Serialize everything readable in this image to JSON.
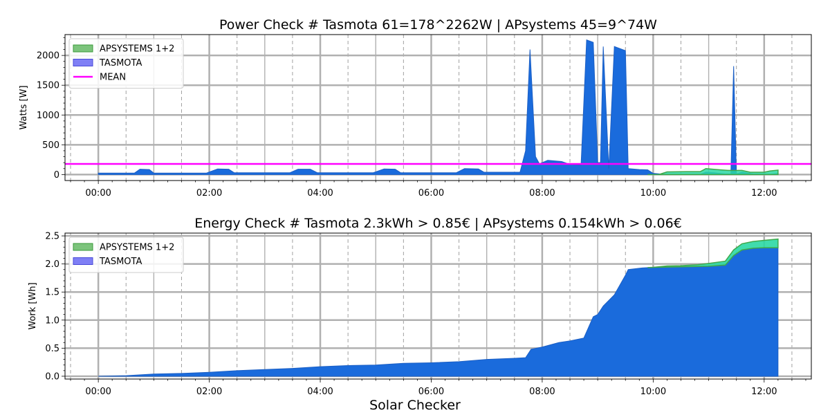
{
  "suptitle": "Solar Checker",
  "colors": {
    "tasmota_fill": "#1a6bdc",
    "apsystems_fill": "#2bd8a4",
    "apsystems_edge": "#3fa84a",
    "mean": "#ff00ff",
    "grid_major": "#b0b0b0",
    "grid_minor": "#a0a0a0"
  },
  "chart_data": [
    {
      "type": "area",
      "title": "Power Check # Tasmota 61=178^2262W | APsystems 45=9^74W",
      "xlabel": "",
      "ylabel": "Watts [W]",
      "xlim": [
        -0.6,
        12.85
      ],
      "ylim": [
        -100,
        2350
      ],
      "x_ticks": [
        0,
        2,
        4,
        6,
        8,
        10,
        12
      ],
      "x_tick_labels": [
        "00:00",
        "02:00",
        "04:00",
        "06:00",
        "08:00",
        "10:00",
        "12:00"
      ],
      "y_ticks": [
        0,
        500,
        1000,
        1500,
        2000
      ],
      "y_tick_labels": [
        "0",
        "500",
        "1000",
        "1500",
        "2000"
      ],
      "legend": [
        "APSYSTEMS 1+2",
        "TASMOTA",
        "MEAN"
      ],
      "legend_position": "upper left",
      "mean_value": 178,
      "series": [
        {
          "name": "TASMOTA",
          "x": [
            0.0,
            0.65,
            0.75,
            0.92,
            1.0,
            1.95,
            2.15,
            2.35,
            2.45,
            3.45,
            3.6,
            3.82,
            3.95,
            4.95,
            5.15,
            5.35,
            5.45,
            6.45,
            6.6,
            6.85,
            6.95,
            7.6,
            7.7,
            7.78,
            7.88,
            7.95,
            8.1,
            8.35,
            8.5,
            8.7,
            8.8,
            8.92,
            9.0,
            9.05,
            9.1,
            9.2,
            9.3,
            9.5,
            9.55,
            9.75,
            9.9,
            10.0,
            10.2,
            10.5,
            10.85,
            10.95,
            11.1,
            11.3,
            11.4,
            11.45,
            11.5,
            11.6,
            11.8,
            12.1,
            12.25
          ],
          "y": [
            25,
            25,
            90,
            85,
            25,
            25,
            95,
            90,
            30,
            30,
            90,
            90,
            30,
            30,
            95,
            90,
            30,
            30,
            100,
            95,
            40,
            40,
            400,
            2100,
            300,
            180,
            240,
            220,
            170,
            160,
            2260,
            2220,
            200,
            200,
            2150,
            100,
            2150,
            2080,
            100,
            85,
            80,
            20,
            5,
            5,
            5,
            40,
            30,
            10,
            10,
            1820,
            10,
            40,
            10,
            5,
            20
          ]
        },
        {
          "name": "APSYSTEMS 1+2",
          "x": [
            9.9,
            10.1,
            10.25,
            10.6,
            10.85,
            10.95,
            11.2,
            11.35,
            11.6,
            11.75,
            12.0,
            12.1,
            12.25
          ],
          "y": [
            0,
            0,
            45,
            50,
            50,
            100,
            80,
            70,
            70,
            40,
            40,
            60,
            75
          ]
        }
      ]
    },
    {
      "type": "area",
      "title": "Energy Check # Tasmota 2.3kWh > 0.85€ | APsystems 0.154kWh > 0.06€",
      "xlabel": "",
      "ylabel": "Work [Wh]",
      "xlim": [
        -0.6,
        12.85
      ],
      "ylim": [
        -0.05,
        2.55
      ],
      "x_ticks": [
        0,
        2,
        4,
        6,
        8,
        10,
        12
      ],
      "x_tick_labels": [
        "00:00",
        "02:00",
        "04:00",
        "06:00",
        "08:00",
        "10:00",
        "12:00"
      ],
      "y_ticks": [
        0.0,
        0.5,
        1.0,
        1.5,
        2.0,
        2.5
      ],
      "y_tick_labels": [
        "0.0",
        "0.5",
        "1.0",
        "1.5",
        "2.0",
        "2.5"
      ],
      "legend": [
        "APSYSTEMS 1+2",
        "TASMOTA"
      ],
      "legend_position": "upper left",
      "series": [
        {
          "name": "TASMOTA",
          "x": [
            0.0,
            0.5,
            1.0,
            1.5,
            2.0,
            2.5,
            3.0,
            3.5,
            4.0,
            4.5,
            5.0,
            5.5,
            6.0,
            6.5,
            7.0,
            7.5,
            7.7,
            7.8,
            8.0,
            8.3,
            8.5,
            8.75,
            8.92,
            9.0,
            9.1,
            9.3,
            9.5,
            9.55,
            9.8,
            10.0,
            10.5,
            11.0,
            11.3,
            11.45,
            11.6,
            11.8,
            12.0,
            12.25
          ],
          "y": [
            0.0,
            0.01,
            0.04,
            0.05,
            0.07,
            0.1,
            0.12,
            0.14,
            0.17,
            0.19,
            0.2,
            0.23,
            0.24,
            0.26,
            0.3,
            0.32,
            0.33,
            0.48,
            0.52,
            0.6,
            0.63,
            0.68,
            1.06,
            1.1,
            1.25,
            1.45,
            1.8,
            1.9,
            1.93,
            1.94,
            1.95,
            1.96,
            1.98,
            2.15,
            2.25,
            2.28,
            2.29,
            2.29
          ]
        },
        {
          "name": "APSYSTEMS 1+2",
          "x": [
            9.9,
            10.0,
            10.25,
            10.5,
            10.8,
            11.0,
            11.3,
            11.45,
            11.6,
            11.8,
            12.0,
            12.25
          ],
          "y": [
            0.0,
            0.0,
            0.02,
            0.02,
            0.03,
            0.05,
            0.07,
            0.1,
            0.11,
            0.12,
            0.13,
            0.154
          ]
        }
      ]
    }
  ]
}
